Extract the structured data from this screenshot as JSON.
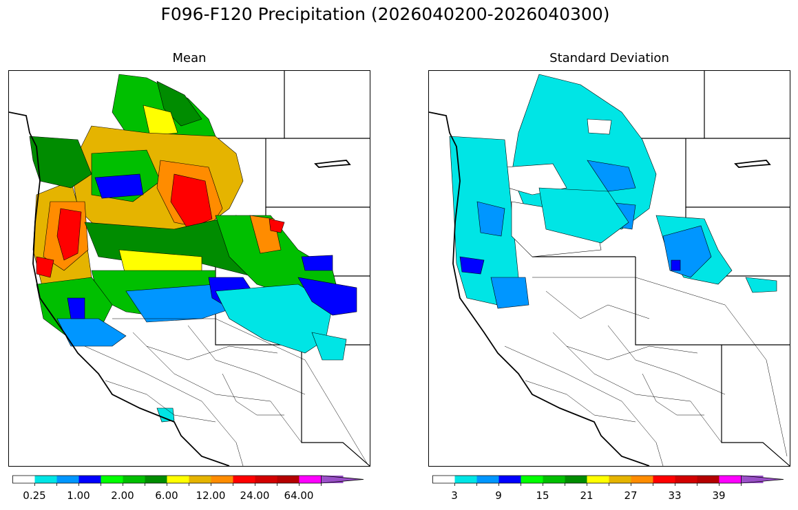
{
  "title": "F096-F120 Precipitation (2026040200-2026040300)",
  "panels": {
    "mean": {
      "title": "Mean"
    },
    "std": {
      "title": "Standard Deviation"
    }
  },
  "colorbars": {
    "mean": {
      "labels": [
        "0.25",
        "1.00",
        "2.00",
        "6.00",
        "12.00",
        "24.00",
        "64.00"
      ],
      "colors": [
        "#ffffff",
        "#00e5e5",
        "#0096ff",
        "#0000ff",
        "#00ff00",
        "#00bf00",
        "#008c00",
        "#ffff00",
        "#e5b400",
        "#ff8c00",
        "#ff0000",
        "#d20000",
        "#b40000",
        "#ff00ff",
        "#9a50c8"
      ]
    },
    "std": {
      "labels": [
        "3",
        "9",
        "15",
        "21",
        "27",
        "33",
        "39"
      ],
      "colors": [
        "#ffffff",
        "#00e5e5",
        "#0096ff",
        "#0000ff",
        "#00ff00",
        "#00bf00",
        "#008c00",
        "#ffff00",
        "#e5b400",
        "#ff8c00",
        "#ff0000",
        "#d20000",
        "#b40000",
        "#ff00ff",
        "#9a50c8"
      ]
    }
  }
}
